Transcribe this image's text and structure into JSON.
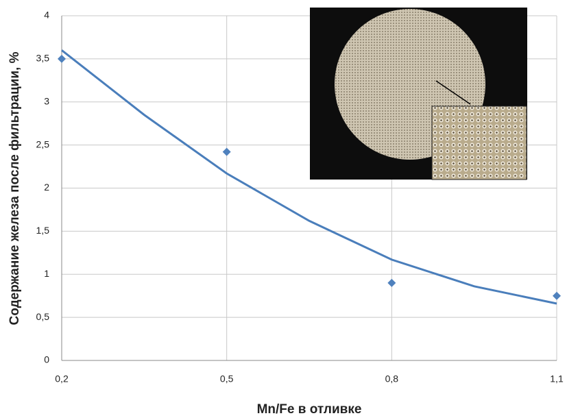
{
  "chart_data": {
    "type": "scatter",
    "x_label": "Mn/Fe в отливке",
    "y_label": "Содержание железа после фильтрации, %",
    "x": [
      0.2,
      0.5,
      0.8,
      1.1
    ],
    "values": [
      3.5,
      2.42,
      0.9,
      0.75
    ],
    "color": "#4f81bd",
    "trendline": {
      "color": "#4a7ebb",
      "x": [
        0.2,
        0.35,
        0.5,
        0.65,
        0.8,
        0.95,
        1.1
      ],
      "values": [
        3.6,
        2.85,
        2.17,
        1.62,
        1.17,
        0.86,
        0.66
      ]
    },
    "xlim": [
      0.2,
      1.1
    ],
    "xticks": [
      {
        "value": 0.2,
        "label": "0,2"
      },
      {
        "value": 0.5,
        "label": "0,5"
      },
      {
        "value": 0.8,
        "label": "0,8"
      },
      {
        "value": 1.1,
        "label": "1,1"
      }
    ],
    "ylim": [
      0,
      4
    ],
    "yticks": [
      0,
      {
        "value": 0.5,
        "label": "0,5"
      },
      1,
      {
        "value": 1.5,
        "label": "1,5"
      },
      2,
      {
        "value": 2.5,
        "label": "2,5"
      },
      3,
      {
        "value": 3.5,
        "label": "3,5"
      },
      4
    ],
    "grid": true
  }
}
